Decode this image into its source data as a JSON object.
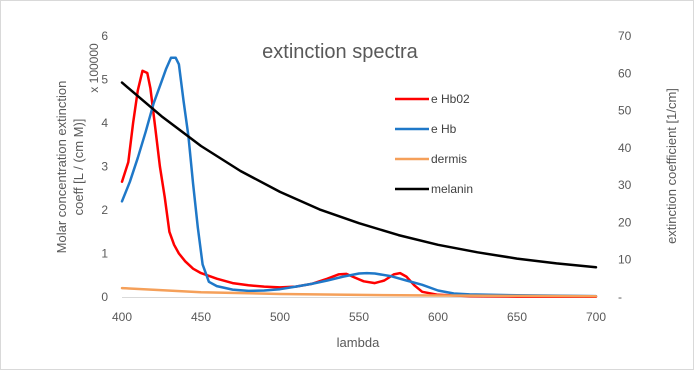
{
  "chart_data": {
    "type": "line",
    "title": "extinction spectra",
    "xlabel": "lambda",
    "ylabel_left_line1": "Molar concentration extinction",
    "ylabel_left_line2": "coeff [L / (cm M)]",
    "ylabel_left_multiplier": "x 100000",
    "ylabel_right": "extinction coefficient [1/cm]",
    "xlim": [
      400,
      700
    ],
    "ylim_left": [
      0,
      6
    ],
    "ylim_right": [
      0,
      70
    ],
    "x_ticks": [
      "400",
      "450",
      "500",
      "550",
      "600",
      "650",
      "700"
    ],
    "y_left_ticks": [
      "0",
      "1",
      "2",
      "3",
      "4",
      "5",
      "6"
    ],
    "y_right_ticks": [
      "-",
      "10",
      "20",
      "30",
      "40",
      "50",
      "60",
      "70"
    ],
    "legend_position": "right-middle",
    "series": [
      {
        "name": "e Hb02",
        "axis": "left",
        "color": "#ff0000",
        "points": [
          [
            400,
            2.65
          ],
          [
            404,
            3.1
          ],
          [
            407,
            4.0
          ],
          [
            410,
            4.75
          ],
          [
            413,
            5.2
          ],
          [
            416,
            5.15
          ],
          [
            418,
            4.8
          ],
          [
            421,
            3.9
          ],
          [
            424,
            3.0
          ],
          [
            427,
            2.3
          ],
          [
            430,
            1.5
          ],
          [
            433,
            1.2
          ],
          [
            436,
            1.0
          ],
          [
            440,
            0.82
          ],
          [
            445,
            0.65
          ],
          [
            450,
            0.55
          ],
          [
            460,
            0.42
          ],
          [
            470,
            0.32
          ],
          [
            480,
            0.27
          ],
          [
            490,
            0.24
          ],
          [
            500,
            0.22
          ],
          [
            510,
            0.24
          ],
          [
            520,
            0.3
          ],
          [
            530,
            0.42
          ],
          [
            537,
            0.52
          ],
          [
            542,
            0.53
          ],
          [
            547,
            0.45
          ],
          [
            553,
            0.36
          ],
          [
            560,
            0.32
          ],
          [
            566,
            0.38
          ],
          [
            572,
            0.52
          ],
          [
            576,
            0.55
          ],
          [
            580,
            0.47
          ],
          [
            585,
            0.27
          ],
          [
            590,
            0.12
          ],
          [
            600,
            0.05
          ],
          [
            620,
            0.02
          ],
          [
            650,
            0.01
          ],
          [
            700,
            0.005
          ]
        ]
      },
      {
        "name": "e Hb",
        "axis": "left",
        "color": "#1f78c8",
        "points": [
          [
            400,
            2.2
          ],
          [
            405,
            2.65
          ],
          [
            410,
            3.2
          ],
          [
            415,
            3.8
          ],
          [
            420,
            4.45
          ],
          [
            425,
            4.95
          ],
          [
            428,
            5.25
          ],
          [
            431,
            5.5
          ],
          [
            434,
            5.5
          ],
          [
            436,
            5.35
          ],
          [
            439,
            4.5
          ],
          [
            442,
            3.7
          ],
          [
            445,
            2.6
          ],
          [
            448,
            1.6
          ],
          [
            451,
            0.75
          ],
          [
            455,
            0.35
          ],
          [
            460,
            0.25
          ],
          [
            470,
            0.17
          ],
          [
            480,
            0.14
          ],
          [
            490,
            0.15
          ],
          [
            500,
            0.18
          ],
          [
            510,
            0.24
          ],
          [
            520,
            0.3
          ],
          [
            530,
            0.38
          ],
          [
            540,
            0.47
          ],
          [
            550,
            0.54
          ],
          [
            555,
            0.55
          ],
          [
            560,
            0.54
          ],
          [
            570,
            0.48
          ],
          [
            580,
            0.38
          ],
          [
            590,
            0.28
          ],
          [
            600,
            0.15
          ],
          [
            610,
            0.08
          ],
          [
            620,
            0.06
          ],
          [
            650,
            0.04
          ],
          [
            700,
            0.02
          ]
        ]
      },
      {
        "name": "dermis",
        "axis": "right",
        "color": "#f5a05a",
        "points": [
          [
            400,
            2.4
          ],
          [
            450,
            1.3
          ],
          [
            500,
            0.8
          ],
          [
            550,
            0.55
          ],
          [
            600,
            0.4
          ],
          [
            650,
            0.3
          ],
          [
            700,
            0.2
          ]
        ]
      },
      {
        "name": "melanin",
        "axis": "right",
        "color": "#000000",
        "points": [
          [
            400,
            57.5
          ],
          [
            425,
            48.5
          ],
          [
            450,
            40.5
          ],
          [
            475,
            33.8
          ],
          [
            500,
            28.2
          ],
          [
            525,
            23.5
          ],
          [
            550,
            19.8
          ],
          [
            575,
            16.6
          ],
          [
            600,
            14.0
          ],
          [
            625,
            12.0
          ],
          [
            650,
            10.3
          ],
          [
            675,
            9.0
          ],
          [
            700,
            8.0
          ]
        ]
      }
    ],
    "grid": false
  }
}
